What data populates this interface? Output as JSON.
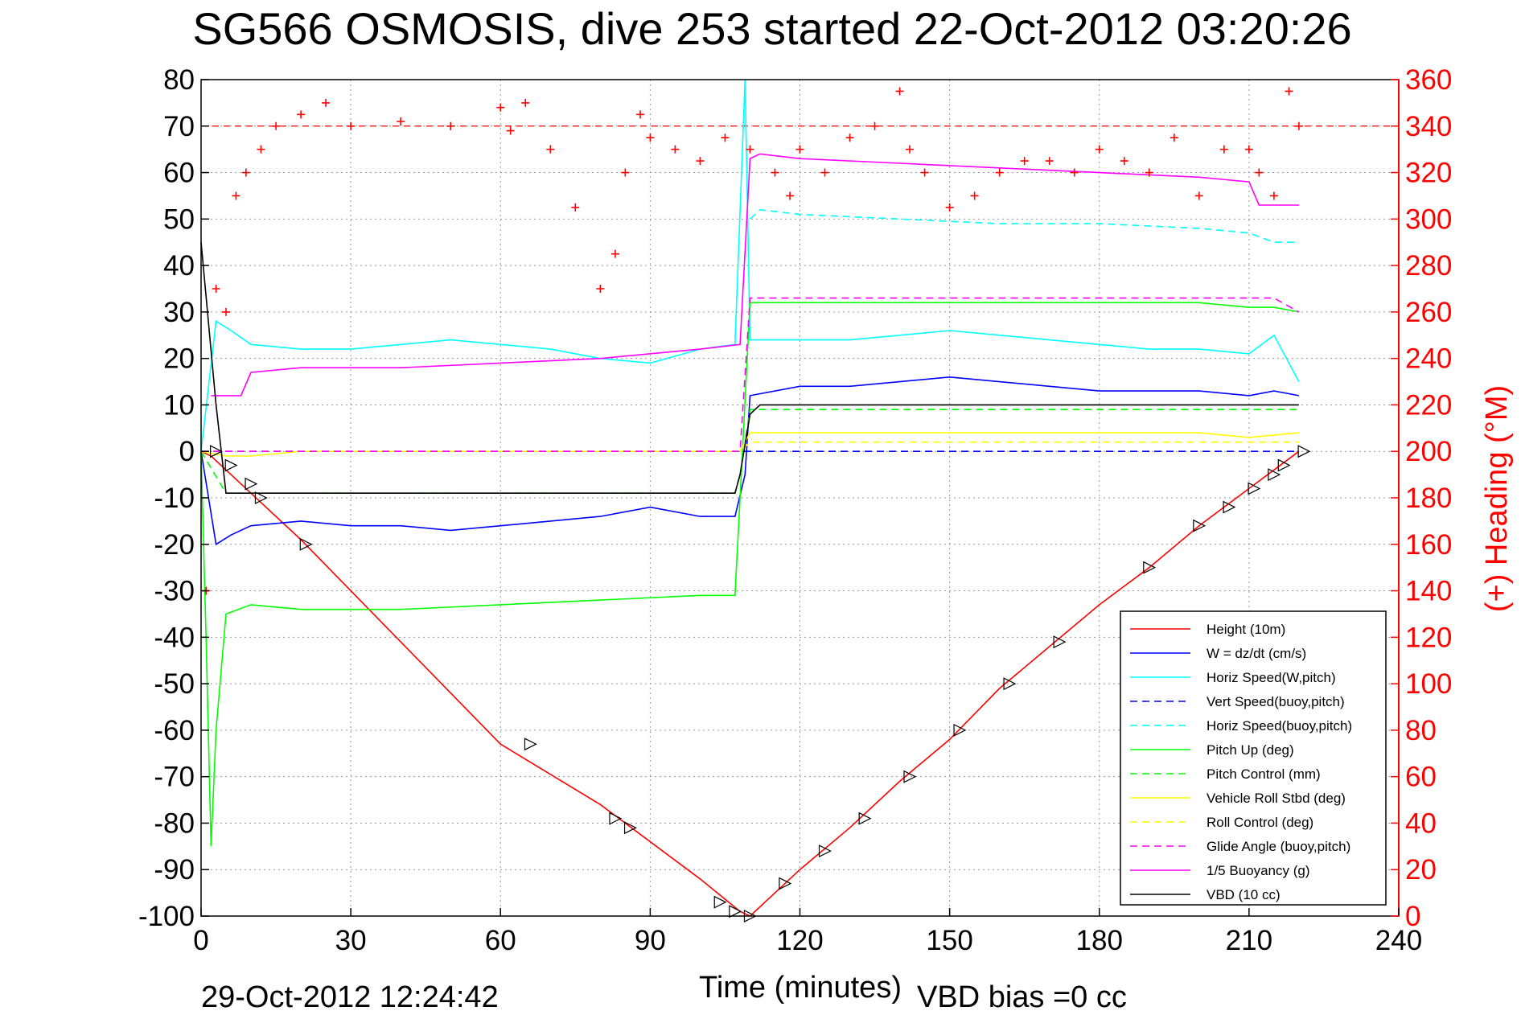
{
  "chart_data": {
    "type": "line",
    "title": "SG566 OSMOSIS, dive 253 started 22-Oct-2012 03:20:26",
    "xlabel": "Time (minutes)",
    "ylabel": "",
    "y2label": "(+) Heading (°M)",
    "xlim": [
      0,
      240
    ],
    "ylim": [
      -100,
      80
    ],
    "y2lim": [
      0,
      360
    ],
    "x_ticks": [
      0,
      30,
      60,
      90,
      120,
      150,
      180,
      210,
      240
    ],
    "y_ticks": [
      -100,
      -90,
      -80,
      -70,
      -60,
      -50,
      -40,
      -30,
      -20,
      -10,
      0,
      10,
      20,
      30,
      40,
      50,
      60,
      70,
      80
    ],
    "y2_ticks": [
      0,
      20,
      40,
      60,
      80,
      100,
      120,
      140,
      160,
      180,
      200,
      220,
      240,
      260,
      280,
      300,
      320,
      340,
      360
    ],
    "grid": true,
    "legend_position": "bottom-right",
    "footer_left": "29-Oct-2012 12:24:42",
    "footer_right": "VBD bias =0 cc",
    "mean_heading": 340,
    "series": [
      {
        "name": "Height (10m)",
        "color": "#ff0000",
        "style": "solid",
        "x": [
          0,
          2,
          5,
          10,
          20,
          40,
          60,
          80,
          100,
          108,
          110,
          115,
          120,
          130,
          140,
          150,
          160,
          170,
          180,
          190,
          200,
          210,
          215,
          220
        ],
        "y": [
          0,
          -1,
          -4,
          -9,
          -19,
          -41,
          -63,
          -76,
          -92,
          -99,
          -100,
          -95,
          -90,
          -81,
          -71,
          -62,
          -51,
          -42,
          -33,
          -25,
          -16,
          -8,
          -4,
          0
        ]
      },
      {
        "name": "W = dz/dt (cm/s)",
        "color": "#0000ff",
        "style": "solid",
        "x": [
          0,
          3,
          6,
          10,
          20,
          30,
          40,
          50,
          60,
          70,
          80,
          90,
          100,
          107,
          109,
          110,
          120,
          130,
          140,
          150,
          160,
          170,
          180,
          190,
          200,
          210,
          215,
          220
        ],
        "y": [
          0,
          -20,
          -18,
          -16,
          -15,
          -16,
          -16,
          -17,
          -16,
          -15,
          -14,
          -12,
          -14,
          -14,
          -5,
          12,
          14,
          14,
          15,
          16,
          15,
          14,
          13,
          13,
          13,
          12,
          13,
          12
        ]
      },
      {
        "name": "Horiz Speed(W,pitch)",
        "color": "#00ffff",
        "style": "solid",
        "x": [
          0,
          3,
          6,
          10,
          20,
          30,
          40,
          50,
          60,
          70,
          80,
          90,
          100,
          107,
          109,
          110,
          120,
          130,
          140,
          150,
          160,
          170,
          180,
          190,
          200,
          210,
          215,
          220
        ],
        "y": [
          0,
          28,
          26,
          23,
          22,
          22,
          23,
          24,
          23,
          22,
          20,
          19,
          22,
          23,
          80,
          24,
          24,
          24,
          25,
          26,
          25,
          24,
          23,
          22,
          22,
          21,
          25,
          15
        ]
      },
      {
        "name": "Vert Speed(buoy,pitch)",
        "color": "#0000ff",
        "style": "dashed",
        "x": [
          0,
          110,
          220
        ],
        "y": [
          0,
          0,
          0
        ]
      },
      {
        "name": "Horiz Speed(buoy,pitch)",
        "color": "#00ffff",
        "style": "dashed",
        "x": [
          110,
          112,
          120,
          140,
          160,
          180,
          200,
          210,
          215,
          220
        ],
        "y": [
          50,
          52,
          51,
          50,
          49,
          49,
          48,
          47,
          45,
          45
        ]
      },
      {
        "name": "Pitch Up (deg)",
        "color": "#00ff00",
        "style": "solid",
        "x": [
          0,
          1,
          2,
          3,
          5,
          10,
          20,
          40,
          60,
          80,
          100,
          107,
          108,
          110,
          120,
          140,
          160,
          180,
          200,
          210,
          215,
          220
        ],
        "y": [
          0,
          -40,
          -85,
          -60,
          -35,
          -33,
          -34,
          -34,
          -33,
          -32,
          -31,
          -31,
          -10,
          32,
          32,
          32,
          32,
          32,
          32,
          31,
          31,
          30
        ]
      },
      {
        "name": "Pitch Control (mm)",
        "color": "#00ff00",
        "style": "dashed",
        "x": [
          0,
          5,
          107,
          108,
          110,
          220
        ],
        "y": [
          0,
          -9,
          -9,
          -5,
          9,
          9
        ]
      },
      {
        "name": "Vehicle Roll Stbd (deg)",
        "color": "#ffff00",
        "style": "solid",
        "x": [
          0,
          5,
          10,
          20,
          40,
          60,
          80,
          100,
          108,
          110,
          120,
          140,
          160,
          180,
          200,
          210,
          220
        ],
        "y": [
          0,
          -1,
          -1,
          0,
          0,
          0,
          0,
          0,
          0,
          4,
          4,
          4,
          4,
          4,
          4,
          3,
          4
        ]
      },
      {
        "name": "Roll Control (deg)",
        "color": "#ffff00",
        "style": "dashed",
        "x": [
          0,
          5,
          108,
          110,
          220
        ],
        "y": [
          0,
          0,
          0,
          2,
          2
        ]
      },
      {
        "name": "Glide Angle (buoy,pitch)",
        "color": "#ff00ff",
        "style": "dashed",
        "x": [
          0,
          108,
          110,
          120,
          140,
          160,
          180,
          200,
          210,
          215,
          220
        ],
        "y": [
          0,
          0,
          33,
          33,
          33,
          33,
          33,
          33,
          33,
          33,
          30
        ]
      },
      {
        "name": "1/5 Buoyancy (g)",
        "color": "#ff00ff",
        "style": "solid",
        "x": [
          2,
          5,
          8,
          10,
          20,
          40,
          60,
          80,
          100,
          108,
          110,
          112,
          120,
          140,
          160,
          180,
          200,
          210,
          212,
          215,
          220
        ],
        "y": [
          12,
          12,
          12,
          17,
          18,
          18,
          19,
          20,
          22,
          23,
          63,
          64,
          63,
          62,
          61,
          60,
          59,
          58,
          53,
          53,
          53
        ]
      },
      {
        "name": "VBD (10 cc)",
        "color": "#000000",
        "style": "solid",
        "x": [
          0,
          3,
          5,
          10,
          107,
          108,
          110,
          112,
          220
        ],
        "y": [
          45,
          10,
          -9,
          -9,
          -9,
          -5,
          8,
          10,
          10
        ]
      },
      {
        "name": "Heading",
        "color": "#ff0000",
        "style": "markers",
        "marker": "+",
        "axis": "right",
        "x": [
          1,
          3,
          5,
          7,
          9,
          12,
          15,
          20,
          25,
          30,
          40,
          50,
          60,
          62,
          65,
          70,
          75,
          80,
          83,
          85,
          88,
          90,
          95,
          100,
          105,
          110,
          115,
          118,
          120,
          125,
          130,
          135,
          140,
          142,
          145,
          150,
          155,
          160,
          165,
          170,
          175,
          180,
          185,
          190,
          195,
          200,
          205,
          210,
          212,
          215,
          218,
          220
        ],
        "y": [
          140,
          270,
          260,
          310,
          320,
          330,
          340,
          345,
          350,
          340,
          342,
          340,
          348,
          338,
          350,
          330,
          305,
          270,
          285,
          320,
          345,
          335,
          330,
          325,
          335,
          330,
          320,
          310,
          330,
          320,
          335,
          340,
          355,
          330,
          320,
          305,
          310,
          320,
          325,
          325,
          320,
          330,
          325,
          320,
          335,
          310,
          330,
          330,
          320,
          310,
          355,
          340
        ]
      }
    ],
    "markers": {
      "name": "Height markers",
      "x": [
        3,
        6,
        10,
        12,
        21,
        66,
        83,
        86,
        104,
        107,
        110,
        117,
        125,
        133,
        142,
        152,
        162,
        172,
        190,
        200,
        206,
        211,
        215,
        217,
        221
      ],
      "y": [
        0,
        -3,
        -7,
        -10,
        -20,
        -63,
        -79,
        -81,
        -97,
        -99,
        -100,
        -93,
        -86,
        -79,
        -70,
        -60,
        -50,
        -41,
        -25,
        -16,
        -12,
        -8,
        -5,
        -3,
        0
      ]
    }
  }
}
